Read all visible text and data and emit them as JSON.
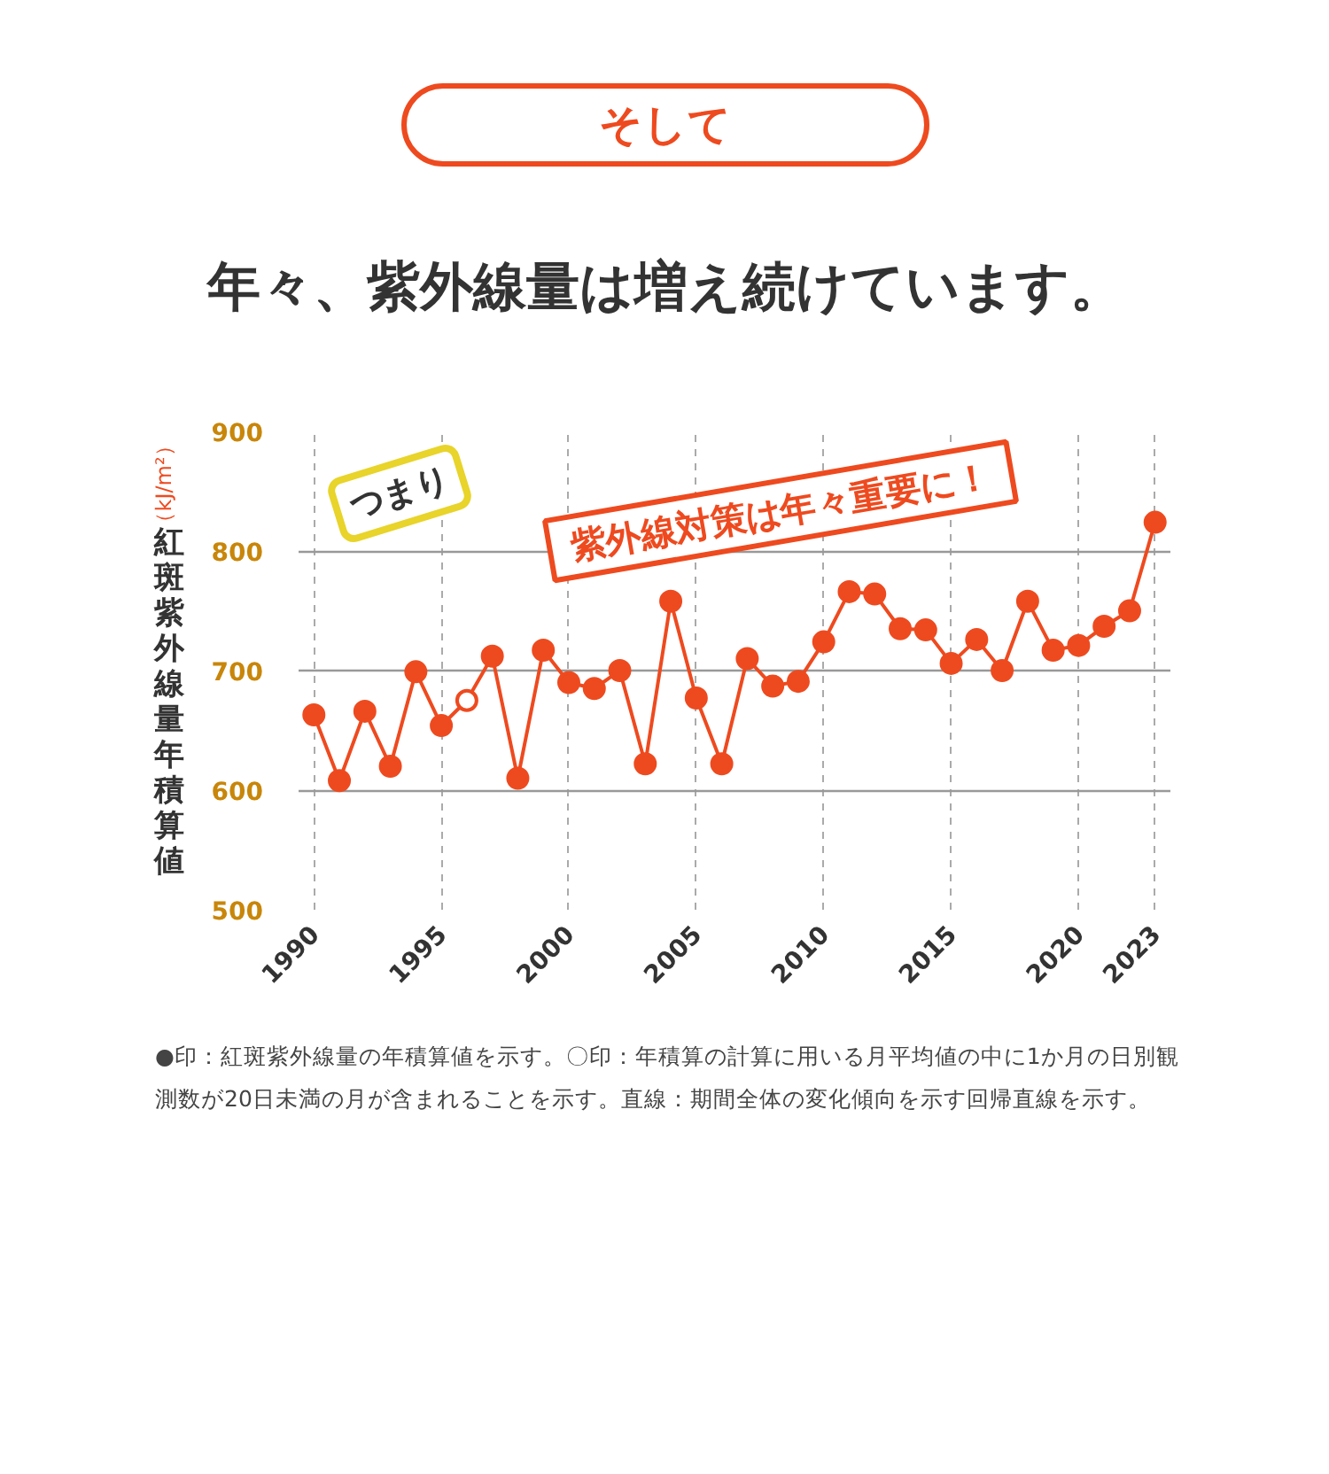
{
  "chart_data": {
    "type": "line",
    "title": "年々、紫外線量は増え続けています。",
    "ylabel": "紅斑紫外線量年積算値",
    "annotations": [
      "そして",
      "（kJ/m²）",
      "つまり",
      "紫外線対策は年々重要に！",
      "●印：紅斑紫外線量の年積算値を示す。〇印：年積算の計算に用いる月平均値の中に1か月の日別観測数が20日未満の月が含まれることを示す。直線：期間全体の変化傾向を示す回帰直線を示す。"
    ],
    "x": [
      1990,
      1991,
      1992,
      1993,
      1994,
      1995,
      1996,
      1997,
      1998,
      1999,
      2000,
      2001,
      2002,
      2003,
      2004,
      2005,
      2006,
      2007,
      2008,
      2009,
      2010,
      2011,
      2012,
      2013,
      2014,
      2015,
      2016,
      2017,
      2018,
      2019,
      2020,
      2021,
      2022,
      2023
    ],
    "series": [
      {
        "color": "#ee4a1f",
        "marker": "none",
        "values": [
          663,
          608,
          666,
          620,
          699,
          654,
          675,
          712,
          610,
          717,
          690,
          685,
          700,
          622,
          758,
          677,
          622,
          710,
          687,
          691,
          724,
          766,
          764,
          735,
          734,
          706,
          726,
          700,
          758,
          717,
          721,
          737,
          750,
          824
        ]
      },
      {
        "type": "scatter",
        "color": "#ee4a1f",
        "marker": "circle",
        "values": [
          663,
          608,
          666,
          620,
          699,
          654,
          null,
          712,
          610,
          717,
          690,
          685,
          700,
          622,
          758,
          677,
          622,
          710,
          687,
          691,
          724,
          766,
          764,
          735,
          734,
          706,
          726,
          700,
          758,
          717,
          721,
          737,
          750,
          824
        ]
      },
      {
        "type": "scatter",
        "color": "#ee4a1f",
        "colors": [
          "#ffffff"
        ],
        "marker": "circle",
        "x": [
          1996
        ],
        "values": [
          675
        ]
      }
    ],
    "xlim": [
      1989.4,
      2023.6
    ],
    "ylim": [
      500,
      900
    ],
    "xticks": [
      1990,
      1995,
      2000,
      2005,
      2010,
      2015,
      2020,
      2023
    ],
    "yticks": [
      500,
      600,
      700,
      800,
      900
    ],
    "grid": true
  }
}
